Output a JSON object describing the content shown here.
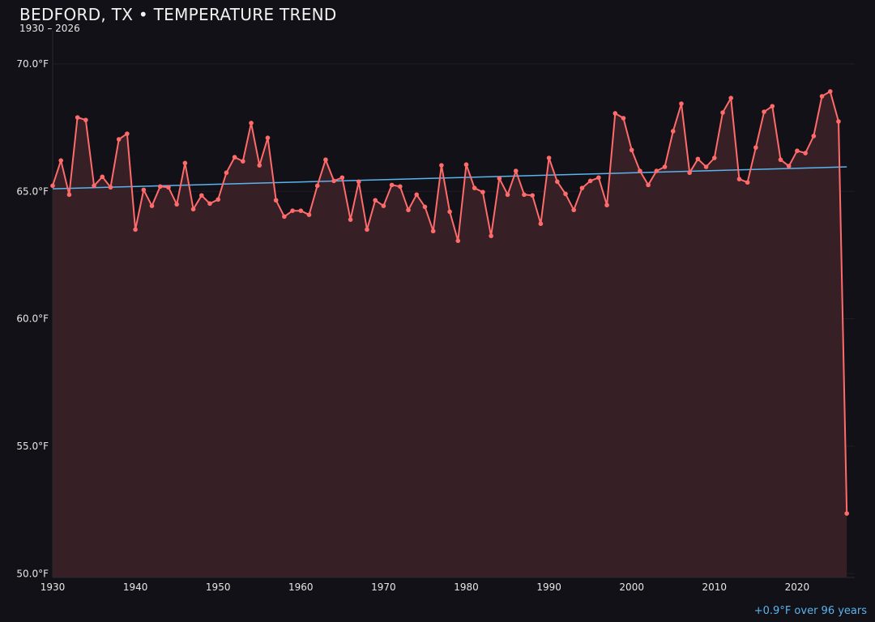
{
  "title": "BEDFORD, TX • TEMPERATURE TREND",
  "subtitle": "1930 – 2026",
  "trend_note": "+0.9°F over 96 years",
  "colors": {
    "background": "#121117",
    "series": "#ff6b6b",
    "fill": "#361f25",
    "trend": "#5ab4ee"
  },
  "chart_data": {
    "type": "area",
    "title": "BEDFORD, TX • TEMPERATURE TREND",
    "xlabel": "",
    "ylabel": "",
    "xlim": [
      1930,
      2027
    ],
    "ylim": [
      49.85,
      71.3
    ],
    "grid": true,
    "x_ticks": [
      1930,
      1940,
      1950,
      1960,
      1970,
      1980,
      1990,
      2000,
      2010,
      2020
    ],
    "x_tick_labels": [
      "1930",
      "1940",
      "1950",
      "1960",
      "1970",
      "1980",
      "1990",
      "2000",
      "2010",
      "2020"
    ],
    "y_ticks": [
      50,
      55,
      60,
      65,
      70
    ],
    "y_tick_labels": [
      "50.0°F",
      "55.0°F",
      "60.0°F",
      "65.0°F",
      "70.0°F"
    ],
    "x": [
      1930,
      1931,
      1932,
      1933,
      1934,
      1935,
      1936,
      1937,
      1938,
      1939,
      1940,
      1941,
      1942,
      1943,
      1944,
      1945,
      1946,
      1947,
      1948,
      1949,
      1950,
      1951,
      1952,
      1953,
      1954,
      1955,
      1956,
      1957,
      1958,
      1959,
      1960,
      1961,
      1962,
      1963,
      1964,
      1965,
      1966,
      1967,
      1968,
      1969,
      1970,
      1971,
      1972,
      1973,
      1974,
      1975,
      1976,
      1977,
      1978,
      1979,
      1980,
      1981,
      1982,
      1983,
      1984,
      1985,
      1986,
      1987,
      1988,
      1989,
      1990,
      1991,
      1992,
      1993,
      1994,
      1995,
      1996,
      1997,
      1998,
      1999,
      2000,
      2001,
      2002,
      2003,
      2004,
      2005,
      2006,
      2007,
      2008,
      2009,
      2010,
      2011,
      2012,
      2013,
      2014,
      2015,
      2016,
      2017,
      2018,
      2019,
      2020,
      2021,
      2022,
      2023,
      2024,
      2025,
      2026
    ],
    "values": [
      65.22,
      66.21,
      64.87,
      67.9,
      67.8,
      65.22,
      65.57,
      65.16,
      67.04,
      67.26,
      63.5,
      65.06,
      64.43,
      65.19,
      65.16,
      64.49,
      66.11,
      64.3,
      64.84,
      64.52,
      64.68,
      65.73,
      66.34,
      66.18,
      67.68,
      66.02,
      67.1,
      64.65,
      64.01,
      64.24,
      64.24,
      64.08,
      65.22,
      66.24,
      65.41,
      65.54,
      63.89,
      65.38,
      63.5,
      64.65,
      64.43,
      65.25,
      65.19,
      64.27,
      64.87,
      64.39,
      63.44,
      66.02,
      64.2,
      63.06,
      66.05,
      65.13,
      64.97,
      63.25,
      65.51,
      64.87,
      65.8,
      64.87,
      64.84,
      63.73,
      66.31,
      65.38,
      64.9,
      64.27,
      65.13,
      65.41,
      65.54,
      64.46,
      68.06,
      67.87,
      66.62,
      65.8,
      65.25,
      65.8,
      65.96,
      67.36,
      68.44,
      65.73,
      66.27,
      65.96,
      66.31,
      68.09,
      68.66,
      65.48,
      65.35,
      66.72,
      68.12,
      68.34,
      66.24,
      65.99,
      66.59,
      66.5,
      67.17,
      68.73,
      68.92,
      67.74,
      52.36
    ],
    "trend": {
      "x": [
        1930,
        2026
      ],
      "y": [
        65.1,
        65.96
      ]
    }
  }
}
